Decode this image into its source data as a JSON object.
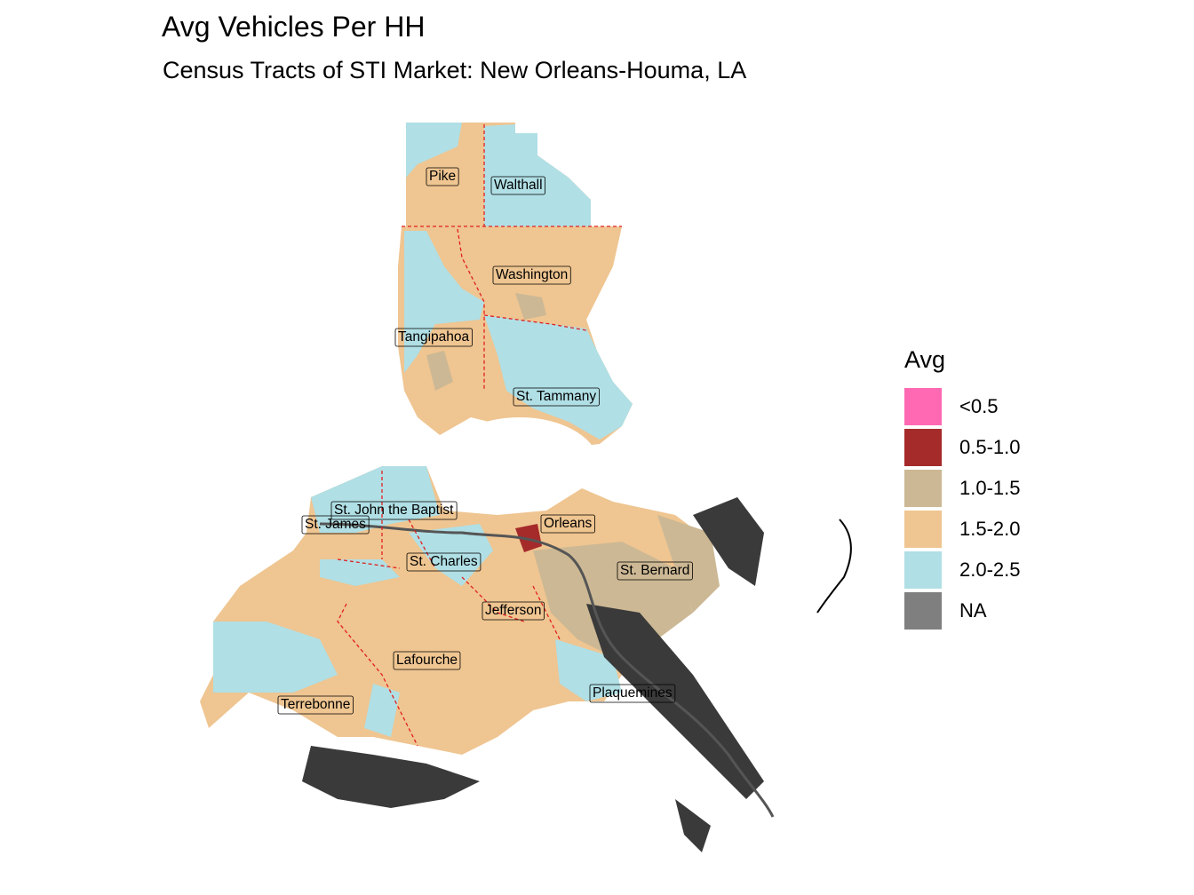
{
  "title": "Avg Vehicles Per HH",
  "subtitle": "Census Tracts of STI Market: New Orleans-Houma, LA",
  "legend": {
    "title": "Avg",
    "items": [
      {
        "label": "<0.5",
        "color": "#ff69b4"
      },
      {
        "label": "0.5-1.0",
        "color": "#a52a2a"
      },
      {
        "label": "1.0-1.5",
        "color": "#ccb894"
      },
      {
        "label": "1.5-2.0",
        "color": "#efc591"
      },
      {
        "label": "2.0-2.5",
        "color": "#b0dfe5"
      },
      {
        "label": "NA",
        "color": "#7f7f7f"
      }
    ]
  },
  "parishes": [
    {
      "name": "Pike"
    },
    {
      "name": "Walthall"
    },
    {
      "name": "Washington"
    },
    {
      "name": "Tangipahoa"
    },
    {
      "name": "St. Tammany"
    },
    {
      "name": "St. John the Baptist"
    },
    {
      "name": "St. James"
    },
    {
      "name": "St. Charles"
    },
    {
      "name": "Orleans"
    },
    {
      "name": "St. Bernard"
    },
    {
      "name": "Jefferson"
    },
    {
      "name": "Lafourche"
    },
    {
      "name": "Plaquemines"
    },
    {
      "name": "Terrebonne"
    }
  ]
}
